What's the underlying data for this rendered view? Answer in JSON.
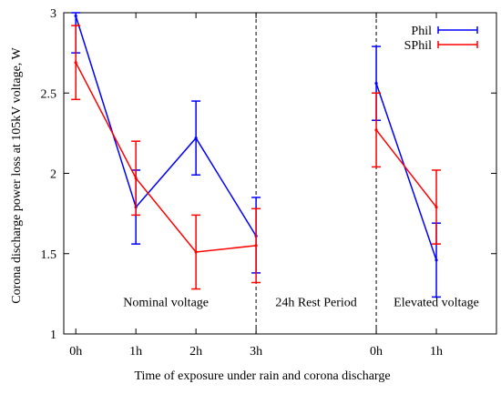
{
  "chart_data": {
    "type": "line",
    "title": "",
    "xlabel": "Time of exposure under rain and corona discharge",
    "ylabel": "Corona discharge power loss at 105kV voltage, W",
    "ylim": [
      1,
      3
    ],
    "yticks": [
      1,
      1.5,
      2,
      2.5,
      3
    ],
    "ytick_labels": [
      "1",
      "1.5",
      "2",
      "2.5",
      "3"
    ],
    "xticks": [
      {
        "pos": 0,
        "label": "0h"
      },
      {
        "pos": 1,
        "label": "1h"
      },
      {
        "pos": 2,
        "label": "2h"
      },
      {
        "pos": 3,
        "label": "3h"
      },
      {
        "pos": 5,
        "label": "0h"
      },
      {
        "pos": 6,
        "label": "1h"
      }
    ],
    "xlim": [
      -0.2,
      7
    ],
    "separators": [
      3,
      5
    ],
    "grid": false,
    "legend_position": "top-right",
    "annotations": [
      {
        "x": 1.5,
        "y": 1.2,
        "text": "Nominal voltage"
      },
      {
        "x": 4,
        "y": 1.2,
        "text": "24h Rest Period"
      },
      {
        "x": 6,
        "y": 1.2,
        "text": "Elevated voltage"
      }
    ],
    "series": [
      {
        "name": "Phil",
        "color": "#0000ff",
        "segments": [
          [
            {
              "x": 0,
              "y": 2.98,
              "lo": 2.75,
              "hi": 3.0
            },
            {
              "x": 1,
              "y": 1.79,
              "lo": 1.56,
              "hi": 2.02
            },
            {
              "x": 2,
              "y": 2.22,
              "lo": 1.99,
              "hi": 2.45
            },
            {
              "x": 3,
              "y": 1.61,
              "lo": 1.38,
              "hi": 1.85
            }
          ],
          [
            {
              "x": 5,
              "y": 2.56,
              "lo": 2.33,
              "hi": 2.79
            },
            {
              "x": 6,
              "y": 1.46,
              "lo": 1.23,
              "hi": 1.69
            }
          ]
        ]
      },
      {
        "name": "SPhil",
        "color": "#ff0000",
        "segments": [
          [
            {
              "x": 0,
              "y": 2.69,
              "lo": 2.46,
              "hi": 2.92
            },
            {
              "x": 1,
              "y": 1.97,
              "lo": 1.74,
              "hi": 2.2
            },
            {
              "x": 2,
              "y": 1.51,
              "lo": 1.28,
              "hi": 1.74
            },
            {
              "x": 3,
              "y": 1.55,
              "lo": 1.32,
              "hi": 1.78
            }
          ],
          [
            {
              "x": 5,
              "y": 2.27,
              "lo": 2.04,
              "hi": 2.5
            },
            {
              "x": 6,
              "y": 1.79,
              "lo": 1.56,
              "hi": 2.02
            }
          ]
        ]
      }
    ]
  }
}
